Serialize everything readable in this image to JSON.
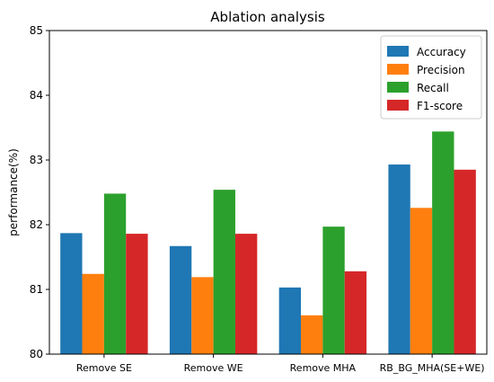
{
  "chart_data": {
    "type": "bar",
    "title": "Ablation analysis",
    "xlabel": "",
    "ylabel": "performance(%)",
    "ylim": [
      80,
      85
    ],
    "yticks": [
      "80",
      "81",
      "82",
      "83",
      "84",
      "85"
    ],
    "categories": [
      "Remove SE",
      "Remove WE",
      "Remove MHA",
      "RB_BG_MHA(SE+WE)"
    ],
    "series": [
      {
        "name": "Accuracy",
        "color": "#1f77b4",
        "values": [
          81.87,
          81.67,
          81.03,
          82.93
        ]
      },
      {
        "name": "Precision",
        "color": "#ff7f0e",
        "values": [
          81.24,
          81.19,
          80.6,
          82.26
        ]
      },
      {
        "name": "Recall",
        "color": "#2ca02c",
        "values": [
          82.48,
          82.54,
          81.97,
          83.44
        ]
      },
      {
        "name": "F1-score",
        "color": "#d62728",
        "values": [
          81.86,
          81.86,
          81.28,
          82.85
        ]
      }
    ],
    "legend": "top-right",
    "grid": false
  }
}
